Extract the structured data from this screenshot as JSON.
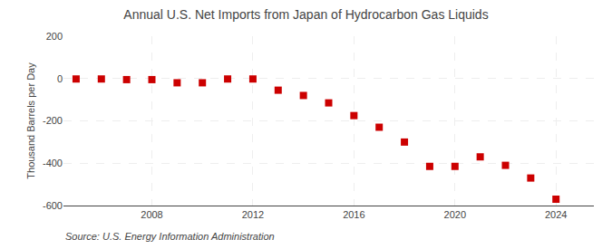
{
  "chart_data": {
    "type": "scatter",
    "title": "Annual U.S. Net Imports from Japan of Hydrocarbon Gas Liquids",
    "ylabel": "Thousand Barrels per Day",
    "annotations": [
      "Source: U.S. Energy Information Administration"
    ],
    "x": [
      2005,
      2006,
      2007,
      2008,
      2009,
      2010,
      2011,
      2012,
      2013,
      2014,
      2015,
      2016,
      2017,
      2018,
      2019,
      2020,
      2021,
      2022,
      2023,
      2024
    ],
    "values": [
      -2,
      -2,
      -5,
      -5,
      -20,
      -20,
      -2,
      -2,
      -55,
      -80,
      -115,
      -175,
      -230,
      -300,
      -415,
      -415,
      -370,
      -410,
      -470,
      -570
    ],
    "color": "#cc0000",
    "marker": "square",
    "xlim": [
      2004.5,
      2025.5
    ],
    "xticks": [
      2008,
      2012,
      2016,
      2020,
      2024
    ],
    "ylim": [
      -600,
      200
    ],
    "yticks": [
      -600,
      -400,
      -200,
      0,
      200
    ],
    "grid": true
  }
}
